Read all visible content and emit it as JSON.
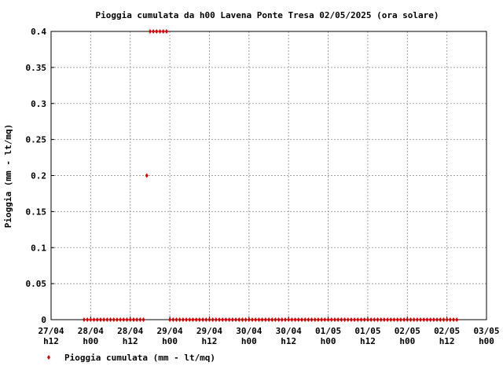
{
  "chart_data": {
    "type": "scatter",
    "title": "Pioggia cumulata da h00 Lavena Ponte Tresa 02/05/2025 (ora solare)",
    "y_label": "Pioggia (mm - lt/mq)",
    "grid": true,
    "legend": "bottom-left",
    "xlim": [
      12,
      144
    ],
    "xticks": [
      {
        "value": 12,
        "label": "27/04 h12"
      },
      {
        "value": 24,
        "label": "28/04 h00"
      },
      {
        "value": 36,
        "label": "28/04 h12"
      },
      {
        "value": 48,
        "label": "29/04 h00"
      },
      {
        "value": 60,
        "label": "29/04 h12"
      },
      {
        "value": 72,
        "label": "30/04 h00"
      },
      {
        "value": 84,
        "label": "30/04 h12"
      },
      {
        "value": 96,
        "label": "01/05 h00"
      },
      {
        "value": 108,
        "label": "01/05 h12"
      },
      {
        "value": 120,
        "label": "02/05 h00"
      },
      {
        "value": 132,
        "label": "02/05 h12"
      },
      {
        "value": 144,
        "label": "03/05 h00"
      }
    ],
    "ylim": [
      0,
      0.4
    ],
    "yticks": [
      0,
      0.05,
      0.1,
      0.15,
      0.2,
      0.25,
      0.3,
      0.35,
      0.4
    ],
    "series": [
      {
        "name": "Pioggia cumulata (mm - lt/mq)",
        "color": "#d40000",
        "x": [
          22,
          23,
          24,
          25,
          26,
          27,
          28,
          29,
          30,
          31,
          32,
          33,
          34,
          35,
          36,
          37,
          38,
          39,
          40,
          41,
          42,
          43,
          44,
          45,
          46,
          47,
          48,
          49,
          50,
          51,
          52,
          53,
          54,
          55,
          56,
          57,
          58,
          59,
          60,
          61,
          62,
          63,
          64,
          65,
          66,
          67,
          68,
          69,
          70,
          71,
          72,
          73,
          74,
          75,
          76,
          77,
          78,
          79,
          80,
          81,
          82,
          83,
          84,
          85,
          86,
          87,
          88,
          89,
          90,
          91,
          92,
          93,
          94,
          95,
          96,
          97,
          98,
          99,
          100,
          101,
          102,
          103,
          104,
          105,
          106,
          107,
          108,
          109,
          110,
          111,
          112,
          113,
          114,
          115,
          116,
          117,
          118,
          119,
          120,
          121,
          122,
          123,
          124,
          125,
          126,
          127,
          128,
          129,
          130,
          131,
          132,
          133,
          134,
          135
        ],
        "values": [
          0,
          0,
          0,
          0,
          0,
          0,
          0,
          0,
          0,
          0,
          0,
          0,
          0,
          0,
          0,
          0,
          0,
          0,
          0,
          0.2,
          0.4,
          0.4,
          0.4,
          0.4,
          0.4,
          0.4,
          0,
          0,
          0,
          0,
          0,
          0,
          0,
          0,
          0,
          0,
          0,
          0,
          0,
          0,
          0,
          0,
          0,
          0,
          0,
          0,
          0,
          0,
          0,
          0,
          0,
          0,
          0,
          0,
          0,
          0,
          0,
          0,
          0,
          0,
          0,
          0,
          0,
          0,
          0,
          0,
          0,
          0,
          0,
          0,
          0,
          0,
          0,
          0,
          0,
          0,
          0,
          0,
          0,
          0,
          0,
          0,
          0,
          0,
          0,
          0,
          0,
          0,
          0,
          0,
          0,
          0,
          0,
          0,
          0,
          0,
          0,
          0,
          0,
          0,
          0,
          0,
          0,
          0,
          0,
          0,
          0,
          0,
          0,
          0,
          0,
          0,
          0,
          0
        ]
      }
    ]
  }
}
